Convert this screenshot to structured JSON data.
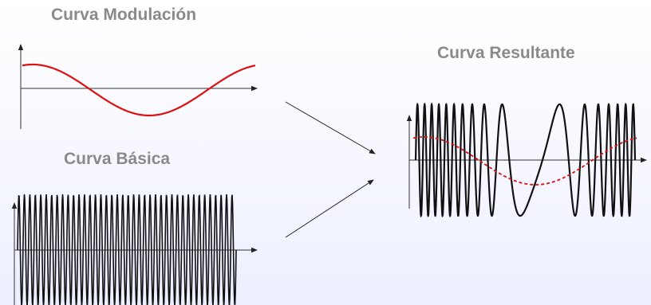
{
  "diagram": {
    "modulation": {
      "label": "Curva Modulación",
      "color": "#dd1111"
    },
    "basic": {
      "label": "Curva Básica",
      "color": "#111111"
    },
    "result": {
      "label": "Curva Resultante",
      "color": "#111111",
      "envelope_color": "#dd1111"
    }
  }
}
